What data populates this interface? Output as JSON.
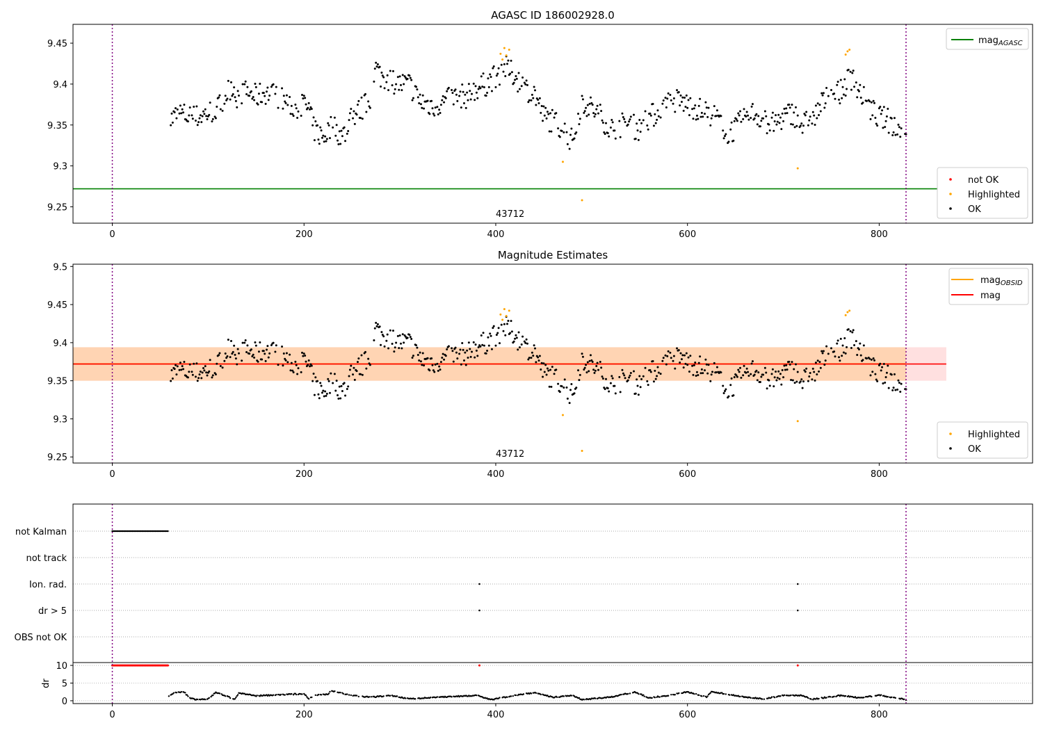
{
  "chart_data": [
    {
      "type": "scatter",
      "title": "AGASC ID 186002928.0",
      "xlim": [
        -41,
        960
      ],
      "ylim": [
        9.23,
        9.473
      ],
      "xticks": [
        0,
        200,
        400,
        600,
        800
      ],
      "yticks": [
        9.25,
        9.3,
        9.35,
        9.4,
        9.45
      ],
      "annotation": "43712",
      "reference_line": {
        "name": "mag_AGASC",
        "value": 9.272,
        "color": "#008000"
      },
      "vlines": [
        0,
        828
      ],
      "legend_lines": [
        {
          "label": "mag",
          "sub": "AGASC",
          "color": "#008000"
        }
      ],
      "legend_points": [
        {
          "label": "not OK",
          "color": "#ff0000"
        },
        {
          "label": "Highlighted",
          "color": "#ffa500"
        },
        {
          "label": "OK",
          "color": "#000000"
        }
      ]
    },
    {
      "type": "scatter",
      "title": "Magnitude Estimates",
      "xlim": [
        -41,
        960
      ],
      "ylim": [
        9.242,
        9.503
      ],
      "xticks": [
        0,
        200,
        400,
        600,
        800
      ],
      "yticks": [
        9.25,
        9.3,
        9.35,
        9.4,
        9.45,
        9.5
      ],
      "annotation": "43712",
      "mag": 9.372,
      "mag_obsid": 9.372,
      "band": [
        9.35,
        9.394
      ],
      "legend_lines": [
        {
          "label": "mag",
          "sub": "OBSID",
          "color": "#ffa500"
        },
        {
          "label": "mag",
          "sub": "",
          "color": "#ff0000"
        }
      ],
      "legend_points": [
        {
          "label": "Highlighted",
          "color": "#ffa500"
        },
        {
          "label": "OK",
          "color": "#000000"
        }
      ]
    },
    {
      "type": "scatter",
      "flags": [
        "not Kalman",
        "not track",
        "Ion. rad.",
        "dr > 5",
        "OBS not OK"
      ],
      "dr_label": "dr",
      "dr_ticks": [
        0,
        5,
        10
      ],
      "dr_ylim": [
        -0.8,
        10.8
      ],
      "not_kalman_range": [
        0,
        58
      ],
      "ion_rad_x": [
        383,
        715
      ],
      "dr_gt5_x": [
        383,
        715
      ]
    }
  ],
  "series": {
    "ok_trend": [
      [
        60,
        9.355
      ],
      [
        70,
        9.365
      ],
      [
        80,
        9.36
      ],
      [
        90,
        9.36
      ],
      [
        100,
        9.365
      ],
      [
        110,
        9.37
      ],
      [
        120,
        9.39
      ],
      [
        125,
        9.4
      ],
      [
        130,
        9.385
      ],
      [
        140,
        9.39
      ],
      [
        150,
        9.385
      ],
      [
        160,
        9.39
      ],
      [
        170,
        9.385
      ],
      [
        180,
        9.38
      ],
      [
        190,
        9.37
      ],
      [
        200,
        9.375
      ],
      [
        205,
        9.37
      ],
      [
        210,
        9.345
      ],
      [
        220,
        9.335
      ],
      [
        230,
        9.35
      ],
      [
        240,
        9.335
      ],
      [
        250,
        9.36
      ],
      [
        260,
        9.37
      ],
      [
        270,
        9.38
      ],
      [
        275,
        9.42
      ],
      [
        280,
        9.41
      ],
      [
        290,
        9.405
      ],
      [
        300,
        9.4
      ],
      [
        310,
        9.4
      ],
      [
        320,
        9.38
      ],
      [
        330,
        9.375
      ],
      [
        340,
        9.375
      ],
      [
        350,
        9.38
      ],
      [
        360,
        9.385
      ],
      [
        370,
        9.385
      ],
      [
        380,
        9.395
      ],
      [
        390,
        9.4
      ],
      [
        400,
        9.41
      ],
      [
        410,
        9.42
      ],
      [
        420,
        9.41
      ],
      [
        430,
        9.395
      ],
      [
        440,
        9.39
      ],
      [
        450,
        9.36
      ],
      [
        460,
        9.355
      ],
      [
        470,
        9.345
      ],
      [
        480,
        9.33
      ],
      [
        490,
        9.38
      ],
      [
        500,
        9.37
      ],
      [
        510,
        9.36
      ],
      [
        520,
        9.345
      ],
      [
        530,
        9.35
      ],
      [
        540,
        9.35
      ],
      [
        550,
        9.345
      ],
      [
        560,
        9.36
      ],
      [
        570,
        9.365
      ],
      [
        580,
        9.375
      ],
      [
        590,
        9.38
      ],
      [
        600,
        9.375
      ],
      [
        610,
        9.37
      ],
      [
        620,
        9.365
      ],
      [
        630,
        9.36
      ],
      [
        640,
        9.34
      ],
      [
        650,
        9.345
      ],
      [
        660,
        9.36
      ],
      [
        670,
        9.365
      ],
      [
        680,
        9.355
      ],
      [
        690,
        9.35
      ],
      [
        700,
        9.36
      ],
      [
        710,
        9.365
      ],
      [
        720,
        9.35
      ],
      [
        730,
        9.355
      ],
      [
        740,
        9.375
      ],
      [
        750,
        9.39
      ],
      [
        760,
        9.39
      ],
      [
        770,
        9.41
      ],
      [
        780,
        9.39
      ],
      [
        790,
        9.37
      ],
      [
        800,
        9.36
      ],
      [
        810,
        9.355
      ],
      [
        820,
        9.345
      ],
      [
        828,
        9.335
      ]
    ],
    "highlighted": [
      [
        405,
        9.437
      ],
      [
        407,
        9.43
      ],
      [
        409,
        9.444
      ],
      [
        411,
        9.435
      ],
      [
        414,
        9.442
      ],
      [
        470,
        9.305
      ],
      [
        490,
        9.258
      ],
      [
        715,
        9.297
      ],
      [
        765,
        9.436
      ],
      [
        767,
        9.44
      ],
      [
        769,
        9.442
      ]
    ],
    "dr_trend": [
      [
        58,
        1.2
      ],
      [
        65,
        2.3
      ],
      [
        75,
        2.5
      ],
      [
        80,
        0.8
      ],
      [
        90,
        0.2
      ],
      [
        100,
        0.6
      ],
      [
        108,
        2.3
      ],
      [
        120,
        1.2
      ],
      [
        128,
        0.4
      ],
      [
        132,
        2.2
      ],
      [
        150,
        1.4
      ],
      [
        170,
        1.6
      ],
      [
        200,
        2.0
      ],
      [
        205,
        0.5
      ],
      [
        210,
        1.5
      ],
      [
        225,
        1.8
      ],
      [
        228,
        2.8
      ],
      [
        250,
        1.5
      ],
      [
        270,
        1.0
      ],
      [
        290,
        1.5
      ],
      [
        310,
        0.5
      ],
      [
        340,
        1.0
      ],
      [
        380,
        1.5
      ],
      [
        395,
        0.3
      ],
      [
        420,
        1.5
      ],
      [
        440,
        2.3
      ],
      [
        460,
        1.0
      ],
      [
        480,
        1.5
      ],
      [
        490,
        0.3
      ],
      [
        520,
        1.0
      ],
      [
        545,
        2.5
      ],
      [
        560,
        0.8
      ],
      [
        580,
        1.5
      ],
      [
        600,
        2.5
      ],
      [
        620,
        1.0
      ],
      [
        625,
        2.6
      ],
      [
        660,
        1.0
      ],
      [
        680,
        0.5
      ],
      [
        700,
        1.5
      ],
      [
        720,
        1.5
      ],
      [
        730,
        0.4
      ],
      [
        760,
        1.5
      ],
      [
        780,
        0.8
      ],
      [
        800,
        1.6
      ],
      [
        828,
        0.3
      ]
    ]
  }
}
